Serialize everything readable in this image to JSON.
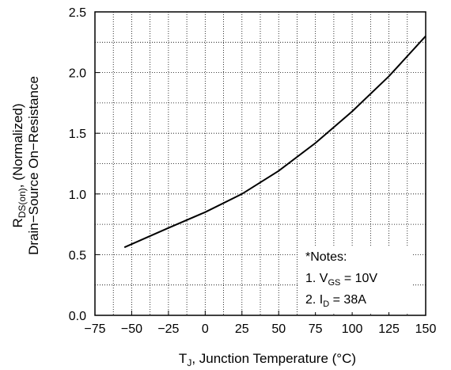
{
  "chart_data": {
    "type": "line",
    "x_axis": {
      "label_main": "T",
      "label_sub": "J",
      "label_rest": ", Junction Temperature (°C)",
      "range": [
        -75,
        150
      ],
      "ticks": [
        -75,
        -50,
        -25,
        0,
        25,
        50,
        75,
        100,
        125,
        150
      ],
      "minor_step": 12.5
    },
    "y_axis": {
      "label_line1_main": "R",
      "label_line1_sub": "DS(on)",
      "label_line1_rest": ", (Normalized)",
      "label_line2": "Drain−Source On−Resistance",
      "range": [
        0.0,
        2.5
      ],
      "ticks": [
        0.0,
        0.5,
        1.0,
        1.5,
        2.0,
        2.5
      ],
      "tick_labels": [
        "0.0",
        "0.5",
        "1.0",
        "1.5",
        "2.0",
        "2.5"
      ],
      "minor_step": 0.25
    },
    "grid": true,
    "grid_style": "dotted",
    "series": [
      {
        "x": [
          -55,
          -25,
          0,
          25,
          50,
          75,
          100,
          125,
          150
        ],
        "y": [
          0.56,
          0.72,
          0.85,
          1.0,
          1.19,
          1.42,
          1.68,
          1.97,
          2.3
        ]
      }
    ],
    "notes": {
      "title": "*Notes:",
      "line1_prefix": "1. V",
      "line1_sub": "GS",
      "line1_rest": " = 10V",
      "line2_prefix": "2. I",
      "line2_sub": "D",
      "line2_rest": " = 38A"
    }
  }
}
